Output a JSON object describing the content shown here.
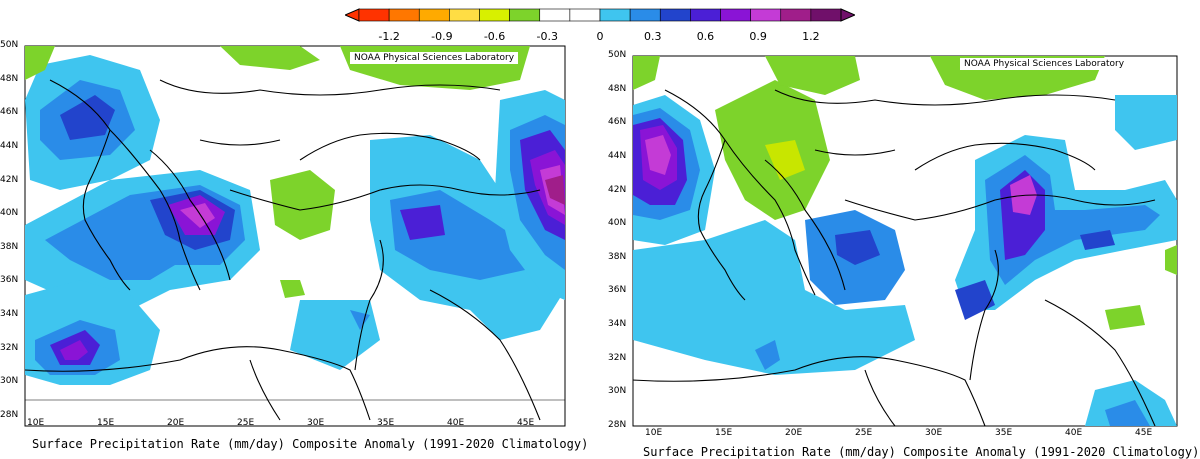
{
  "colorbar": {
    "labels": [
      "-1.2",
      "-0.9",
      "-0.6",
      "-0.3",
      "0",
      "0.3",
      "0.6",
      "0.9",
      "1.2"
    ],
    "colors": [
      "#ff3300",
      "#ff7700",
      "#ffaa00",
      "#ffdd44",
      "#d8f000",
      "#7dd32b",
      "#ffffff",
      "#ffffff",
      "#3fc5ef",
      "#2a8ce8",
      "#2244cc",
      "#4b1fd6",
      "#8a14d6",
      "#c43bd6",
      "#a01e8a",
      "#70106a"
    ]
  },
  "maps": [
    {
      "watermark": "NOAA Physical Sciences Laboratory",
      "caption": "Surface Precipitation Rate (mm/day) Composite Anomaly (1991-2020 Climatology)",
      "lat_labels": [
        "50N",
        "48N",
        "46N",
        "44N",
        "42N",
        "40N",
        "38N",
        "36N",
        "34N",
        "32N",
        "30N",
        "28N"
      ],
      "lon_labels": [
        "10E",
        "15E",
        "20E",
        "25E",
        "30E",
        "35E",
        "40E",
        "45E"
      ]
    },
    {
      "watermark": "NOAA Physical Sciences Laboratory",
      "caption": "Surface Precipitation Rate (mm/day) Composite Anomaly (1991-2020 Climatology)",
      "lat_labels": [
        "50N",
        "48N",
        "46N",
        "44N",
        "42N",
        "40N",
        "38N",
        "36N",
        "34N",
        "32N",
        "30N",
        "28N"
      ],
      "lon_labels": [
        "10E",
        "15E",
        "20E",
        "25E",
        "30E",
        "35E",
        "40E",
        "45E"
      ]
    }
  ]
}
